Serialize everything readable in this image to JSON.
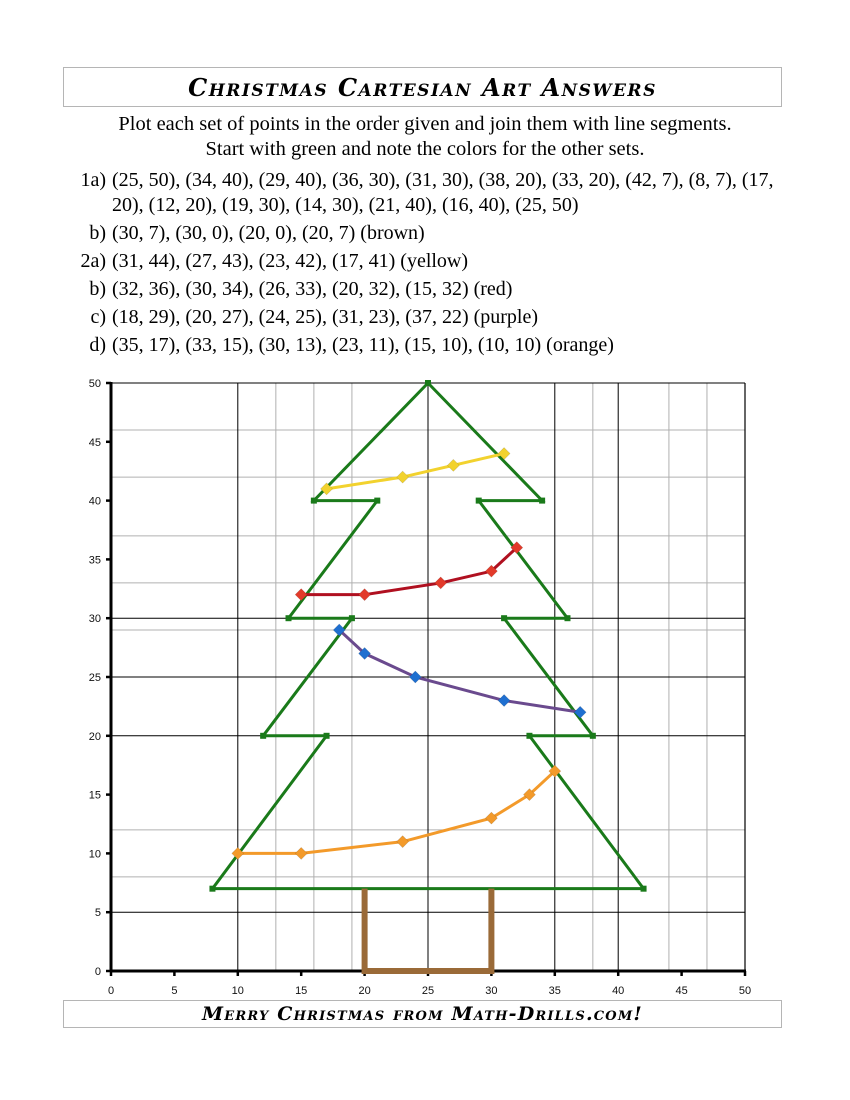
{
  "header": {
    "title": "Christmas Cartesian Art Answers"
  },
  "instructions": {
    "line1": "Plot each set of points in the order given and join them with line segments.",
    "line2": "Start with green and note the colors for the other sets."
  },
  "problems": [
    {
      "label": "1a)",
      "points": "(25, 50), (34, 40), (29, 40), (36, 30), (31, 30), (38, 20), (33, 20), (42, 7), (8, 7), (17, 20), (12, 20), (19, 30), (14, 30), (21, 40), (16, 40), (25, 50)"
    },
    {
      "label": "b)",
      "points": "(30, 7), (30, 0), (20, 0), (20, 7)  (brown)"
    },
    {
      "label": "2a)",
      "points": "(31, 44), (27, 43), (23, 42), (17, 41)  (yellow)"
    },
    {
      "label": "b)",
      "points": "(32, 36), (30, 34), (26, 33), (20, 32), (15, 32)  (red)"
    },
    {
      "label": "c)",
      "points": "(18, 29), (20, 27), (24, 25), (31, 23), (37, 22)  (purple)"
    },
    {
      "label": "d)",
      "points": "(35, 17), (33, 15), (30, 13), (23, 11), (15, 10), (10, 10)  (orange)"
    }
  ],
  "footer": {
    "text": "Merry Christmas from Math-Drills.com!"
  },
  "chart_data": {
    "type": "line",
    "title": "",
    "xlabel": "",
    "ylabel": "",
    "xlim": [
      0,
      50
    ],
    "ylim": [
      0,
      50
    ],
    "x_ticks": [
      0,
      5,
      10,
      15,
      20,
      25,
      30,
      35,
      40,
      45,
      50
    ],
    "y_ticks": [
      0,
      5,
      10,
      15,
      20,
      25,
      30,
      35,
      40,
      45,
      50
    ],
    "grid": true,
    "legend": null,
    "gridlines": {
      "vertical_major": [
        10,
        25,
        35,
        40
      ],
      "vertical_minor": [
        13,
        16,
        19,
        38,
        44,
        47
      ],
      "horizontal_major": [
        5,
        20,
        25,
        30
      ],
      "horizontal_minor": [
        8,
        12,
        29,
        33,
        37,
        42,
        46
      ]
    },
    "series": [
      {
        "name": "1a tree",
        "color": "#1a7a1a",
        "marker": "square",
        "points": [
          [
            25,
            50
          ],
          [
            34,
            40
          ],
          [
            29,
            40
          ],
          [
            36,
            30
          ],
          [
            31,
            30
          ],
          [
            38,
            20
          ],
          [
            33,
            20
          ],
          [
            42,
            7
          ],
          [
            8,
            7
          ],
          [
            17,
            20
          ],
          [
            12,
            20
          ],
          [
            19,
            30
          ],
          [
            14,
            30
          ],
          [
            21,
            40
          ],
          [
            16,
            40
          ],
          [
            25,
            50
          ]
        ]
      },
      {
        "name": "1b trunk (brown)",
        "color": "#9a6a38",
        "marker": "none",
        "points": [
          [
            30,
            7
          ],
          [
            30,
            0
          ],
          [
            20,
            0
          ],
          [
            20,
            7
          ]
        ]
      },
      {
        "name": "2a (yellow)",
        "color": "#f2d22e",
        "marker": "diamond",
        "points": [
          [
            31,
            44
          ],
          [
            27,
            43
          ],
          [
            23,
            42
          ],
          [
            17,
            41
          ]
        ]
      },
      {
        "name": "2b (red)",
        "color": "#b01020",
        "marker": "diamond",
        "marker_color": "#e23a2a",
        "points": [
          [
            32,
            36
          ],
          [
            30,
            34
          ],
          [
            26,
            33
          ],
          [
            20,
            32
          ],
          [
            15,
            32
          ]
        ]
      },
      {
        "name": "2c (purple)",
        "color": "#6a4a8e",
        "marker": "diamond",
        "marker_color": "#1f6fd0",
        "points": [
          [
            18,
            29
          ],
          [
            20,
            27
          ],
          [
            24,
            25
          ],
          [
            31,
            23
          ],
          [
            37,
            22
          ]
        ]
      },
      {
        "name": "2d (orange)",
        "color": "#f39a2a",
        "marker": "diamond",
        "points": [
          [
            35,
            17
          ],
          [
            33,
            15
          ],
          [
            30,
            13
          ],
          [
            23,
            11
          ],
          [
            15,
            10
          ],
          [
            10,
            10
          ]
        ]
      }
    ]
  }
}
